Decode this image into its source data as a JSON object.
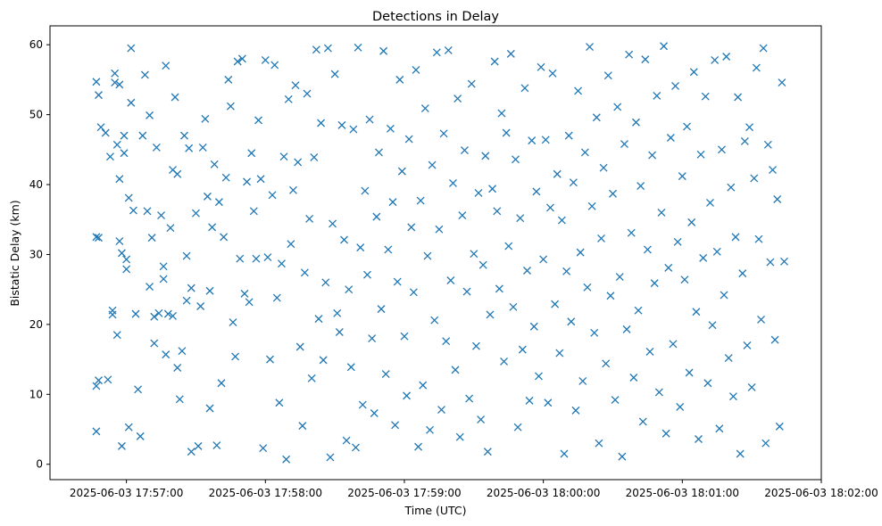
{
  "chart_data": {
    "type": "scatter",
    "title": "Detections in Delay",
    "xlabel": "Time (UTC)",
    "ylabel": "Bistatic Delay (km)",
    "marker": "x",
    "color": "#1f77b4",
    "grid": false,
    "legend": "none",
    "x_range": [
      "2025-06-03 17:56:27",
      "2025-06-03 18:02:00"
    ],
    "y_range": [
      -2.2,
      62.7
    ],
    "x_ticks": [
      "2025-06-03 17:57:00",
      "2025-06-03 17:58:00",
      "2025-06-03 17:59:00",
      "2025-06-03 18:00:00",
      "2025-06-03 18:01:00",
      "2025-06-03 18:02:00"
    ],
    "y_ticks": [
      0,
      10,
      20,
      30,
      40,
      50,
      60
    ],
    "points": [
      [
        "17:56:47",
        54.7
      ],
      [
        "17:56:48",
        52.8
      ],
      [
        "17:56:49",
        48.2
      ],
      [
        "17:56:47",
        32.5
      ],
      [
        "17:56:48",
        32.4
      ],
      [
        "17:56:48",
        12.0
      ],
      [
        "17:56:47",
        11.2
      ],
      [
        "17:56:47",
        4.7
      ],
      [
        "17:56:51",
        47.4
      ],
      [
        "17:56:52",
        12.1
      ],
      [
        "17:56:53",
        44.0
      ],
      [
        "17:56:54",
        22.0
      ],
      [
        "17:56:54",
        21.4
      ],
      [
        "17:56:55",
        55.9
      ],
      [
        "17:56:55",
        54.6
      ],
      [
        "17:56:56",
        45.7
      ],
      [
        "17:56:56",
        18.5
      ],
      [
        "17:56:57",
        54.3
      ],
      [
        "17:56:57",
        40.8
      ],
      [
        "17:56:57",
        31.9
      ],
      [
        "17:56:58",
        30.2
      ],
      [
        "17:56:58",
        2.6
      ],
      [
        "17:56:59",
        47.0
      ],
      [
        "17:56:59",
        44.5
      ],
      [
        "17:57:00",
        29.3
      ],
      [
        "17:57:00",
        27.9
      ],
      [
        "17:57:01",
        38.1
      ],
      [
        "17:57:01",
        5.3
      ],
      [
        "17:57:02",
        59.5
      ],
      [
        "17:57:02",
        51.7
      ],
      [
        "17:57:03",
        36.3
      ],
      [
        "17:57:04",
        21.5
      ],
      [
        "17:57:05",
        10.7
      ],
      [
        "17:57:06",
        4.0
      ],
      [
        "17:57:07",
        47.0
      ],
      [
        "17:57:08",
        55.7
      ],
      [
        "17:57:09",
        36.2
      ],
      [
        "17:57:10",
        49.9
      ],
      [
        "17:57:10",
        25.4
      ],
      [
        "17:57:11",
        32.4
      ],
      [
        "17:57:12",
        21.1
      ],
      [
        "17:57:12",
        17.3
      ],
      [
        "17:57:13",
        45.3
      ],
      [
        "17:57:14",
        21.6
      ],
      [
        "17:57:15",
        35.6
      ],
      [
        "17:57:16",
        28.3
      ],
      [
        "17:57:16",
        26.5
      ],
      [
        "17:57:17",
        57.0
      ],
      [
        "17:57:17",
        15.7
      ],
      [
        "17:57:18",
        21.5
      ],
      [
        "17:57:19",
        33.8
      ],
      [
        "17:57:20",
        42.1
      ],
      [
        "17:57:20",
        21.2
      ],
      [
        "17:57:21",
        52.5
      ],
      [
        "17:57:22",
        41.5
      ],
      [
        "17:57:22",
        13.8
      ],
      [
        "17:57:23",
        9.3
      ],
      [
        "17:57:24",
        16.2
      ],
      [
        "17:57:25",
        47.0
      ],
      [
        "17:57:26",
        29.8
      ],
      [
        "17:57:26",
        23.4
      ],
      [
        "17:57:27",
        45.2
      ],
      [
        "17:57:28",
        25.2
      ],
      [
        "17:57:28",
        1.8
      ],
      [
        "17:57:30",
        35.9
      ],
      [
        "17:57:31",
        2.6
      ],
      [
        "17:57:32",
        22.6
      ],
      [
        "17:57:33",
        45.3
      ],
      [
        "17:57:34",
        49.4
      ],
      [
        "17:57:35",
        38.3
      ],
      [
        "17:57:36",
        24.8
      ],
      [
        "17:57:36",
        8.0
      ],
      [
        "17:57:37",
        33.9
      ],
      [
        "17:57:38",
        42.9
      ],
      [
        "17:57:39",
        2.7
      ],
      [
        "17:57:40",
        37.5
      ],
      [
        "17:57:41",
        11.6
      ],
      [
        "17:57:42",
        32.5
      ],
      [
        "17:57:43",
        41.0
      ],
      [
        "17:57:44",
        55.0
      ],
      [
        "17:57:45",
        51.2
      ],
      [
        "17:57:46",
        20.3
      ],
      [
        "17:57:47",
        15.4
      ],
      [
        "17:57:48",
        57.6
      ],
      [
        "17:57:49",
        29.4
      ],
      [
        "17:57:50",
        58.0
      ],
      [
        "17:57:51",
        24.4
      ],
      [
        "17:57:52",
        40.4
      ],
      [
        "17:57:53",
        23.2
      ],
      [
        "17:57:54",
        44.5
      ],
      [
        "17:57:55",
        36.2
      ],
      [
        "17:57:56",
        29.4
      ],
      [
        "17:57:57",
        49.2
      ],
      [
        "17:57:58",
        40.8
      ],
      [
        "17:57:59",
        2.3
      ],
      [
        "17:58:00",
        57.8
      ],
      [
        "17:58:01",
        29.6
      ],
      [
        "17:58:02",
        15.0
      ],
      [
        "17:58:03",
        38.5
      ],
      [
        "17:58:04",
        57.1
      ],
      [
        "17:58:05",
        23.8
      ],
      [
        "17:58:06",
        8.8
      ],
      [
        "17:58:07",
        28.7
      ],
      [
        "17:58:08",
        44.0
      ],
      [
        "17:58:09",
        0.7
      ],
      [
        "17:58:10",
        52.2
      ],
      [
        "17:58:11",
        31.5
      ],
      [
        "17:58:12",
        39.2
      ],
      [
        "17:58:13",
        54.2
      ],
      [
        "17:58:14",
        43.2
      ],
      [
        "17:58:15",
        16.8
      ],
      [
        "17:58:16",
        5.5
      ],
      [
        "17:58:17",
        27.4
      ],
      [
        "17:58:18",
        53.0
      ],
      [
        "17:58:19",
        35.1
      ],
      [
        "17:58:20",
        12.3
      ],
      [
        "17:58:21",
        43.9
      ],
      [
        "17:58:22",
        59.3
      ],
      [
        "17:58:23",
        20.8
      ],
      [
        "17:58:24",
        48.8
      ],
      [
        "17:58:25",
        14.9
      ],
      [
        "17:58:26",
        26.0
      ],
      [
        "17:58:27",
        59.5
      ],
      [
        "17:58:28",
        1.0
      ],
      [
        "17:58:29",
        34.4
      ],
      [
        "17:58:30",
        55.8
      ],
      [
        "17:58:31",
        21.6
      ],
      [
        "17:58:32",
        18.9
      ],
      [
        "17:58:33",
        48.5
      ],
      [
        "17:58:34",
        32.1
      ],
      [
        "17:58:35",
        3.4
      ],
      [
        "17:58:36",
        25.0
      ],
      [
        "17:58:37",
        13.9
      ],
      [
        "17:58:38",
        47.9
      ],
      [
        "17:58:39",
        2.4
      ],
      [
        "17:58:40",
        59.6
      ],
      [
        "17:58:41",
        31.0
      ],
      [
        "17:58:42",
        8.5
      ],
      [
        "17:58:43",
        39.1
      ],
      [
        "17:58:44",
        27.1
      ],
      [
        "17:58:45",
        49.3
      ],
      [
        "17:58:46",
        18.0
      ],
      [
        "17:58:47",
        7.3
      ],
      [
        "17:58:48",
        35.4
      ],
      [
        "17:58:49",
        44.6
      ],
      [
        "17:58:50",
        22.2
      ],
      [
        "17:58:51",
        59.1
      ],
      [
        "17:58:52",
        12.9
      ],
      [
        "17:58:53",
        30.7
      ],
      [
        "17:58:54",
        48.0
      ],
      [
        "17:58:55",
        37.5
      ],
      [
        "17:58:56",
        5.6
      ],
      [
        "17:58:57",
        26.1
      ],
      [
        "17:58:58",
        55.0
      ],
      [
        "17:58:59",
        41.9
      ],
      [
        "17:59:00",
        18.3
      ],
      [
        "17:59:01",
        9.8
      ],
      [
        "17:59:02",
        46.5
      ],
      [
        "17:59:03",
        33.9
      ],
      [
        "17:59:04",
        24.6
      ],
      [
        "17:59:05",
        56.4
      ],
      [
        "17:59:06",
        2.5
      ],
      [
        "17:59:07",
        37.7
      ],
      [
        "17:59:08",
        11.3
      ],
      [
        "17:59:09",
        50.9
      ],
      [
        "17:59:10",
        29.8
      ],
      [
        "17:59:11",
        4.9
      ],
      [
        "17:59:12",
        42.8
      ],
      [
        "17:59:13",
        20.6
      ],
      [
        "17:59:14",
        58.9
      ],
      [
        "17:59:15",
        33.6
      ],
      [
        "17:59:16",
        7.8
      ],
      [
        "17:59:17",
        47.3
      ],
      [
        "17:59:18",
        17.6
      ],
      [
        "17:59:19",
        59.2
      ],
      [
        "17:59:20",
        26.3
      ],
      [
        "17:59:21",
        40.2
      ],
      [
        "17:59:22",
        13.5
      ],
      [
        "17:59:23",
        52.3
      ],
      [
        "17:59:24",
        3.9
      ],
      [
        "17:59:25",
        35.6
      ],
      [
        "17:59:26",
        44.9
      ],
      [
        "17:59:27",
        24.7
      ],
      [
        "17:59:28",
        9.4
      ],
      [
        "17:59:29",
        54.4
      ],
      [
        "17:59:30",
        30.1
      ],
      [
        "17:59:31",
        16.9
      ],
      [
        "17:59:32",
        38.8
      ],
      [
        "17:59:33",
        6.4
      ],
      [
        "17:59:34",
        28.5
      ],
      [
        "17:59:35",
        44.1
      ],
      [
        "17:59:36",
        1.8
      ],
      [
        "17:59:37",
        21.4
      ],
      [
        "17:59:38",
        39.4
      ],
      [
        "17:59:39",
        57.6
      ],
      [
        "17:59:40",
        36.2
      ],
      [
        "17:59:41",
        25.1
      ],
      [
        "17:59:42",
        50.2
      ],
      [
        "17:59:43",
        14.7
      ],
      [
        "17:59:44",
        47.4
      ],
      [
        "17:59:45",
        31.2
      ],
      [
        "17:59:46",
        58.7
      ],
      [
        "17:59:47",
        22.5
      ],
      [
        "17:59:48",
        43.6
      ],
      [
        "17:59:49",
        5.3
      ],
      [
        "17:59:50",
        35.2
      ],
      [
        "17:59:51",
        16.4
      ],
      [
        "17:59:52",
        53.8
      ],
      [
        "17:59:53",
        27.7
      ],
      [
        "17:59:54",
        9.1
      ],
      [
        "17:59:55",
        46.3
      ],
      [
        "17:59:56",
        19.7
      ],
      [
        "17:59:57",
        39.0
      ],
      [
        "17:59:58",
        12.6
      ],
      [
        "17:59:59",
        56.8
      ],
      [
        "18:00:00",
        29.3
      ],
      [
        "18:00:01",
        46.4
      ],
      [
        "18:00:02",
        8.8
      ],
      [
        "18:00:03",
        36.7
      ],
      [
        "18:00:04",
        55.9
      ],
      [
        "18:00:05",
        22.9
      ],
      [
        "18:00:06",
        41.5
      ],
      [
        "18:00:07",
        15.9
      ],
      [
        "18:00:08",
        34.9
      ],
      [
        "18:00:09",
        1.5
      ],
      [
        "18:00:10",
        27.6
      ],
      [
        "18:00:11",
        47.0
      ],
      [
        "18:00:12",
        20.4
      ],
      [
        "18:00:13",
        40.3
      ],
      [
        "18:00:14",
        7.7
      ],
      [
        "18:00:15",
        53.4
      ],
      [
        "18:00:16",
        30.3
      ],
      [
        "18:00:17",
        11.9
      ],
      [
        "18:00:18",
        44.6
      ],
      [
        "18:00:19",
        25.3
      ],
      [
        "18:00:20",
        59.7
      ],
      [
        "18:00:21",
        36.9
      ],
      [
        "18:00:22",
        18.8
      ],
      [
        "18:00:23",
        49.6
      ],
      [
        "18:00:24",
        3.0
      ],
      [
        "18:00:25",
        32.3
      ],
      [
        "18:00:26",
        42.4
      ],
      [
        "18:00:27",
        14.4
      ],
      [
        "18:00:28",
        55.6
      ],
      [
        "18:00:29",
        24.1
      ],
      [
        "18:00:30",
        38.7
      ],
      [
        "18:00:31",
        9.2
      ],
      [
        "18:00:32",
        51.1
      ],
      [
        "18:00:33",
        26.8
      ],
      [
        "18:00:34",
        1.1
      ],
      [
        "18:00:35",
        45.8
      ],
      [
        "18:00:36",
        19.3
      ],
      [
        "18:00:37",
        58.6
      ],
      [
        "18:00:38",
        33.1
      ],
      [
        "18:00:39",
        12.4
      ],
      [
        "18:00:40",
        48.9
      ],
      [
        "18:00:41",
        22.0
      ],
      [
        "18:00:42",
        39.8
      ],
      [
        "18:00:43",
        6.1
      ],
      [
        "18:00:44",
        57.9
      ],
      [
        "18:00:45",
        30.7
      ],
      [
        "18:00:46",
        16.1
      ],
      [
        "18:00:47",
        44.2
      ],
      [
        "18:00:48",
        25.9
      ],
      [
        "18:00:49",
        52.7
      ],
      [
        "18:00:50",
        10.3
      ],
      [
        "18:00:51",
        36.0
      ],
      [
        "18:00:52",
        59.8
      ],
      [
        "18:00:53",
        4.4
      ],
      [
        "18:00:54",
        28.1
      ],
      [
        "18:00:55",
        46.7
      ],
      [
        "18:00:56",
        17.2
      ],
      [
        "18:00:57",
        54.1
      ],
      [
        "18:00:58",
        31.8
      ],
      [
        "18:00:59",
        8.2
      ],
      [
        "18:01:00",
        41.2
      ],
      [
        "18:01:01",
        26.4
      ],
      [
        "18:01:02",
        48.3
      ],
      [
        "18:01:03",
        13.1
      ],
      [
        "18:01:04",
        34.6
      ],
      [
        "18:01:05",
        56.1
      ],
      [
        "18:01:06",
        21.8
      ],
      [
        "18:01:07",
        3.6
      ],
      [
        "18:01:08",
        44.3
      ],
      [
        "18:01:09",
        29.5
      ],
      [
        "18:01:10",
        52.6
      ],
      [
        "18:01:11",
        11.6
      ],
      [
        "18:01:12",
        37.4
      ],
      [
        "18:01:13",
        19.9
      ],
      [
        "18:01:14",
        57.8
      ],
      [
        "18:01:15",
        30.4
      ],
      [
        "18:01:16",
        5.1
      ],
      [
        "18:01:17",
        45.0
      ],
      [
        "18:01:18",
        24.2
      ],
      [
        "18:01:19",
        58.3
      ],
      [
        "18:01:20",
        15.2
      ],
      [
        "18:01:21",
        39.6
      ],
      [
        "18:01:22",
        9.7
      ],
      [
        "18:01:23",
        32.5
      ],
      [
        "18:01:24",
        52.5
      ],
      [
        "18:01:25",
        1.5
      ],
      [
        "18:01:26",
        27.3
      ],
      [
        "18:01:27",
        46.2
      ],
      [
        "18:01:28",
        17.0
      ],
      [
        "18:01:29",
        48.2
      ],
      [
        "18:01:30",
        11.0
      ],
      [
        "18:01:31",
        40.9
      ],
      [
        "18:01:32",
        56.7
      ],
      [
        "18:01:33",
        32.2
      ],
      [
        "18:01:34",
        20.7
      ],
      [
        "18:01:35",
        59.5
      ],
      [
        "18:01:36",
        3.0
      ],
      [
        "18:01:37",
        45.7
      ],
      [
        "18:01:38",
        28.9
      ],
      [
        "18:01:39",
        42.1
      ],
      [
        "18:01:40",
        17.8
      ],
      [
        "18:01:41",
        37.9
      ],
      [
        "18:01:42",
        5.4
      ],
      [
        "18:01:43",
        54.6
      ],
      [
        "18:01:44",
        29.0
      ]
    ]
  }
}
